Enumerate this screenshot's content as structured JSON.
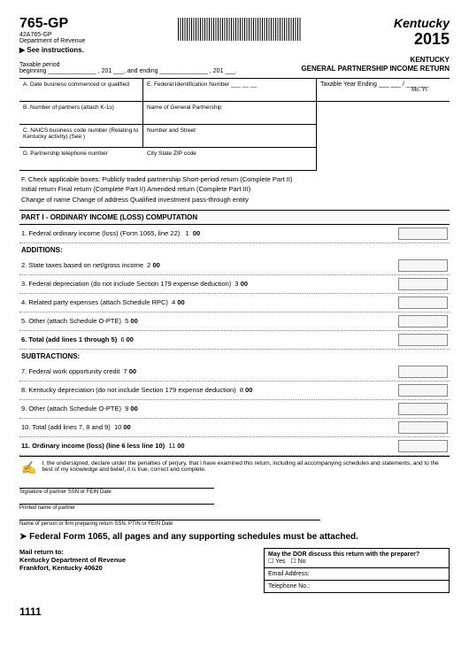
{
  "header": {
    "form_number": "765-GP",
    "form_sub": "42A765-GP",
    "department": "Department of Revenue",
    "see_instructions": "See instructions.",
    "state_logo": "Kentucky",
    "year": "2015",
    "title_line1": "KENTUCKY",
    "title_line2": "GENERAL PARTNERSHIP INCOME RETURN"
  },
  "period": {
    "label": "Taxable period",
    "beginning": "beginning ______________ , 201 ___, and  ending  ______________ , 201 ___."
  },
  "upper": {
    "a_label": "A. Date business commenced or qualified",
    "e_label": "E.   Federal Identification Number ___ __  __",
    "tye_label": "Taxable Year Ending",
    "tye_fill": "___  ___ / ___  ___",
    "tye_moyr": "Mo.        Yr.",
    "b_label": "B. Number of partners (attach K-1s)",
    "name_label": "Name of General Partnership",
    "c_label": "C. NAICS business code number (Relating to Kentucky activity) (See       )",
    "street_label": "Number and Street",
    "d_label": "D. Partnership telephone number",
    "csz_label": "City  State ZIP code"
  },
  "section_f": {
    "l1": "F. Check applicable boxes:  Publicly traded partnership Short-period return (Complete Part II)",
    "l2": "Initial return Final return (Complete Part II) Amended return (Complete Part III)",
    "l3": "Change of name Change of address Qualified investment pass-through entity"
  },
  "part1_header": "PART I - ORDINARY INCOME (LOSS) COMPUTATION",
  "lines": [
    {
      "txt": "1. Federal ordinary income (loss) (Form 1065, line 22)",
      "n": "1",
      "z": "00"
    }
  ],
  "additions_hdr": "ADDITIONS:",
  "add_lines": [
    {
      "txt": "2. State taxes based on net/gross income",
      "n": "2",
      "z": "00"
    },
    {
      "txt": "3. Federal depreciation (do not include Section 179 expense deduction)",
      "n": "3",
      "z": "00"
    },
    {
      "txt": "4. Related party expenses (attach Schedule RPC)",
      "n": "4",
      "z": "00"
    },
    {
      "txt": "5. Other (attach Schedule O-PTE)",
      "n": "5",
      "z": "00"
    },
    {
      "txt": "6. Total (add lines 1 through 5)",
      "n": "6",
      "z": "00"
    }
  ],
  "subtractions_hdr": "SUBTRACTIONS:",
  "sub_lines": [
    {
      "txt": "7. Federal work opportunity credit",
      "n": "7",
      "z": "00"
    },
    {
      "txt": "8. Kentucky depreciation (do not include Section 179 expense deduction)",
      "n": "8",
      "z": "00"
    },
    {
      "txt": "9. Other (attach Schedule O-PTE)",
      "n": "9",
      "z": "00"
    },
    {
      "txt": "10. Total (add lines 7, 8 and 9)",
      "n": "10",
      "z": "00"
    },
    {
      "txt": "11. Ordinary income (loss) (line 6 less line 10)",
      "n": "11",
      "z": "00"
    }
  ],
  "declaration": "I, the undersigned, declare under the penalties of perjury, that I have examined this return, including all accompanying schedules and statements, and to the best of my knowledge and belief, it is true, correct and complete.",
  "sig1": "Signature of partner SSN  or FEIN Date",
  "sig2": "Printed name of partner",
  "sig3": "Name of person or firm preparing return  SSN, PTIN or FEIN Date",
  "fed_note": "Federal Form 1065, all pages and any supporting schedules must be attached.",
  "mail": {
    "hdr": "Mail return to:",
    "l1": "Kentucky Department of Revenue",
    "l2": "Frankfort, Kentucky 40620"
  },
  "preparer": {
    "q": "May the DOR discuss this return with the preparer?",
    "yes": "Yes",
    "no": "No",
    "email": "Email Address:",
    "tel": "Telephone No.:"
  },
  "page_num": "1111"
}
